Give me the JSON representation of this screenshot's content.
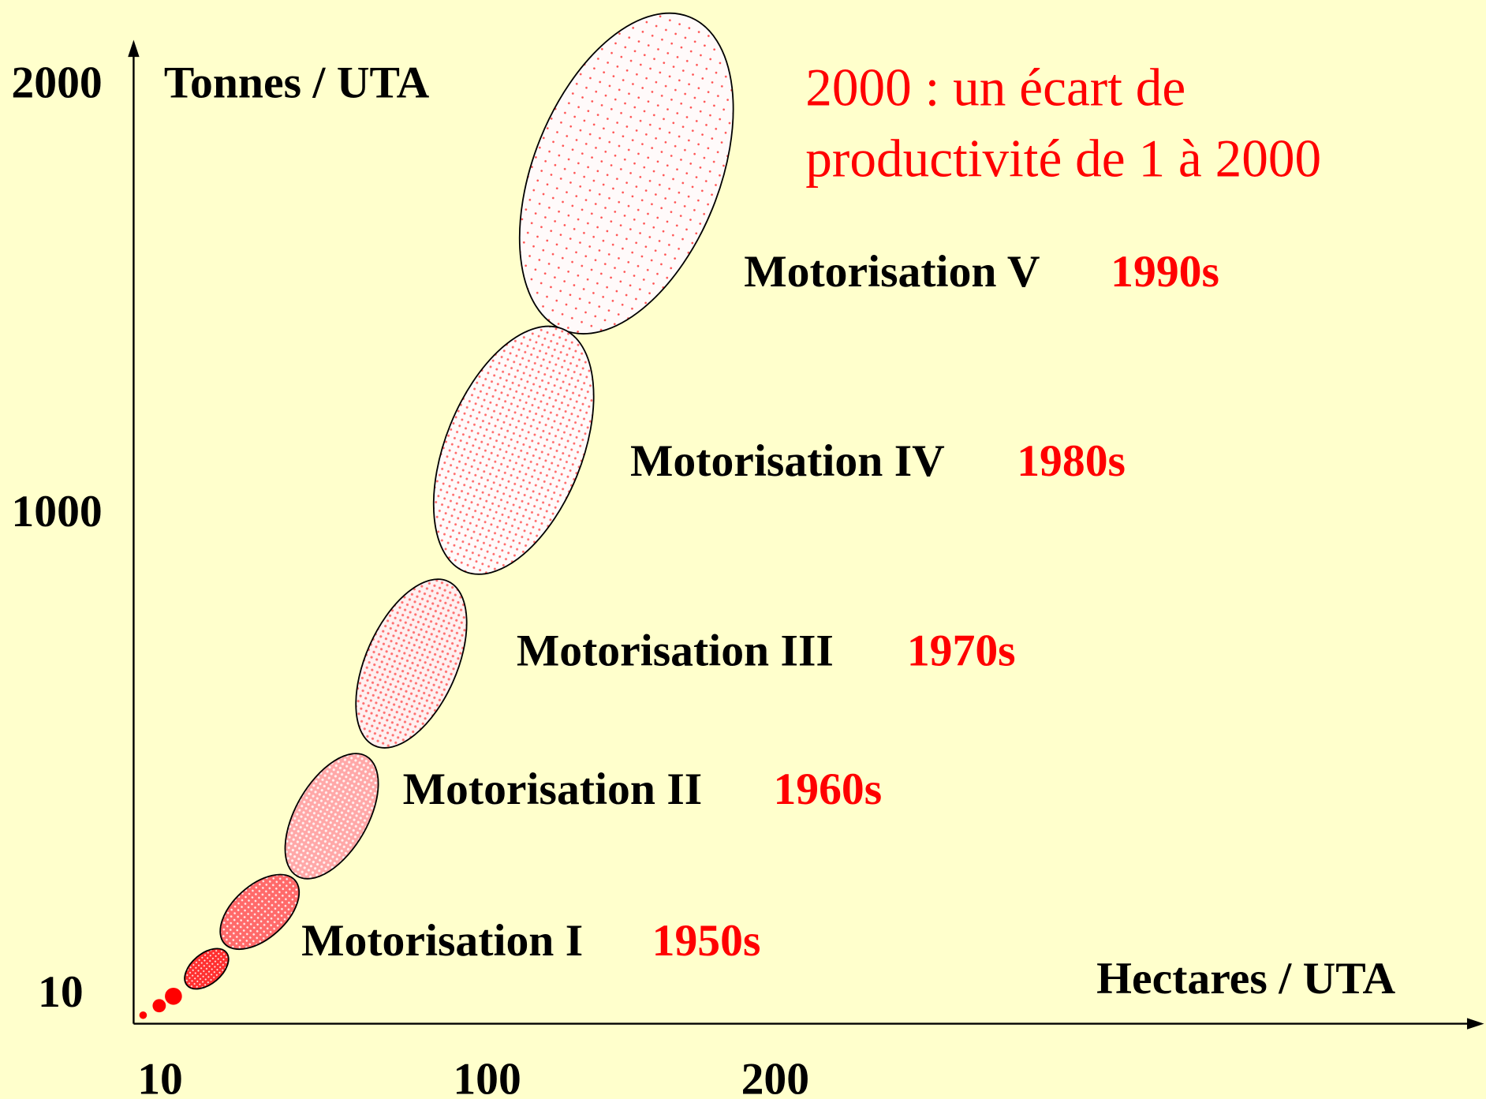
{
  "axes": {
    "y_label": "Tonnes / UTA",
    "x_label": "Hectares / UTA",
    "y_ticks": [
      "2000",
      "1000",
      "10"
    ],
    "x_ticks": [
      "10",
      "100",
      "200"
    ]
  },
  "annotation": {
    "lines": [
      "2000 : un écart de",
      "productivité de 1 à 2000"
    ]
  },
  "stages": [
    {
      "label": "Motorisation I",
      "decade": "1950s"
    },
    {
      "label": "Motorisation II",
      "decade": "1960s"
    },
    {
      "label": "Motorisation III",
      "decade": "1970s"
    },
    {
      "label": "Motorisation IV",
      "decade": "1980s"
    },
    {
      "label": "Motorisation V",
      "decade": "1990s"
    }
  ]
}
